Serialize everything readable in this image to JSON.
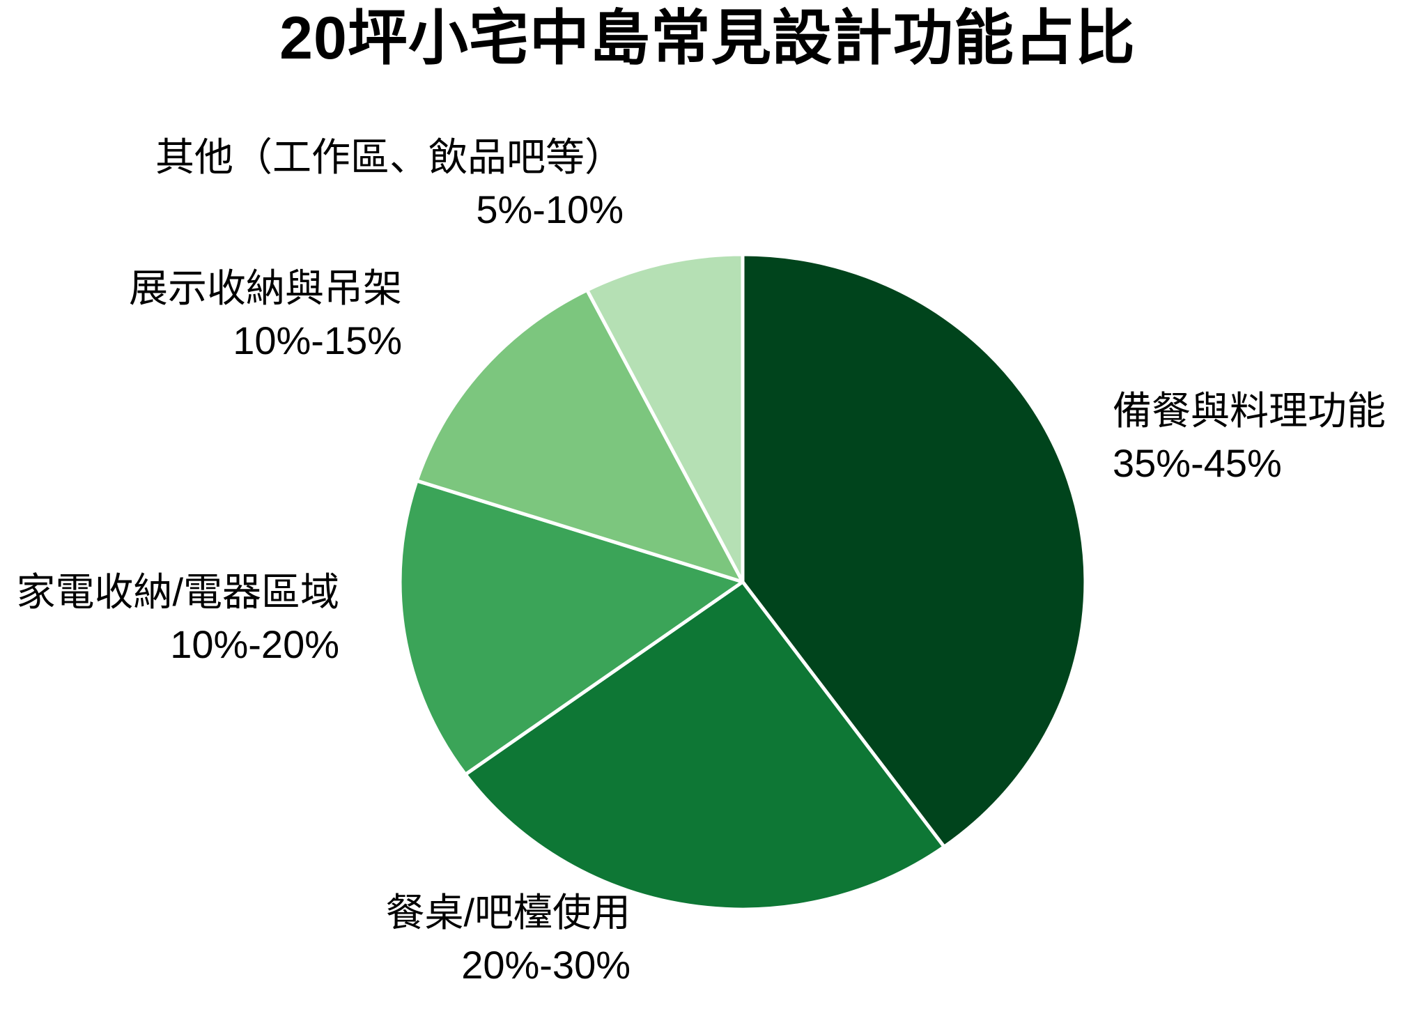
{
  "chart_data": {
    "type": "pie",
    "title": "20坪小宅中島常見設計功能占比",
    "legend": "none",
    "labels_position": "outside",
    "start_angle_deg": 0,
    "direction": "clockwise",
    "border_color": "#FFFFFF",
    "background": "#FFFFFF",
    "slices": [
      {
        "label": "備餐與料理功能",
        "range": "35%-45%",
        "value": 40,
        "color": "#00441C"
      },
      {
        "label": "餐桌/吧檯使用",
        "range": "20%-30%",
        "value": 25,
        "color": "#0E7735"
      },
      {
        "label": "家電收納/電器區域",
        "range": "10%-20%",
        "value": 15,
        "color": "#3BA458"
      },
      {
        "label": "展示收納與吊架",
        "range": "10%-15%",
        "value": 12.5,
        "color": "#7CC67E"
      },
      {
        "label": "其他（工作區、飲品吧等）",
        "range": "5%-10%",
        "value": 7.5,
        "color": "#B5E0B4"
      }
    ]
  }
}
